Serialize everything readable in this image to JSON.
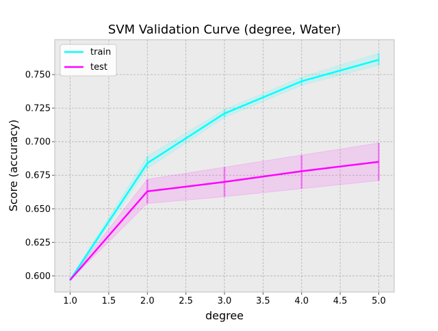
{
  "chart_data": {
    "type": "line",
    "title": "SVM Validation Curve (degree, Water)",
    "xlabel": "degree",
    "ylabel": "Score (accuracy)",
    "x": [
      1.0,
      2.0,
      3.0,
      4.0,
      5.0
    ],
    "xlim": [
      0.8,
      5.2
    ],
    "ylim": [
      0.588,
      0.776
    ],
    "xticks": [
      1.0,
      1.5,
      2.0,
      2.5,
      3.0,
      3.5,
      4.0,
      4.5,
      5.0
    ],
    "yticks": [
      0.6,
      0.625,
      0.65,
      0.675,
      0.7,
      0.725,
      0.75
    ],
    "xtick_labels": [
      "1.0",
      "1.5",
      "2.0",
      "2.5",
      "3.0",
      "3.5",
      "4.0",
      "4.5",
      "5.0"
    ],
    "ytick_labels": [
      "0.600",
      "0.625",
      "0.650",
      "0.675",
      "0.700",
      "0.725",
      "0.750"
    ],
    "grid": true,
    "legend_position": "top-left",
    "series": [
      {
        "name": "train",
        "color": "#00ffff",
        "values": [
          0.597,
          0.684,
          0.721,
          0.745,
          0.761
        ],
        "lower": [
          0.596,
          0.68,
          0.718,
          0.742,
          0.757
        ],
        "upper": [
          0.598,
          0.689,
          0.724,
          0.748,
          0.766
        ]
      },
      {
        "name": "test",
        "color": "#ff00ff",
        "values": [
          0.597,
          0.663,
          0.67,
          0.678,
          0.685
        ],
        "lower": [
          0.597,
          0.654,
          0.659,
          0.665,
          0.671
        ],
        "upper": [
          0.598,
          0.672,
          0.681,
          0.69,
          0.699
        ]
      }
    ]
  }
}
